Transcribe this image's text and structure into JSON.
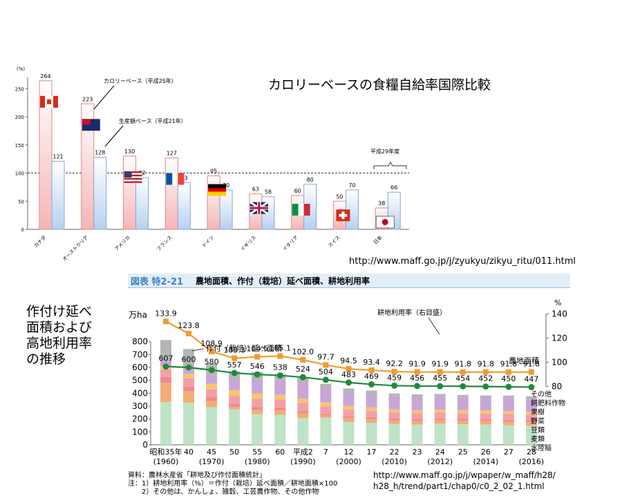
{
  "page_title": "カロリーベースの食糧自給率国際比較",
  "url_top": "http://www.maff.go.jp/j/zyukyu/zikyu_ritu/011.html",
  "side_title": "作付け延べ\n面積および\n高地利用率\nの推移",
  "url_bottom": "http://www.maff.go.jp/j/wpaper/w_maff/h28/\nh28_h/trend/part1/chap0/c0_2_02_1.html",
  "figure_header": {
    "badge": "図表 特2-21",
    "title": "農地面積、作付（栽培）延べ面積、耕地利用率"
  },
  "notes": "資料：農林水産省「耕地及び作付面積統計」\n 注：1）耕地利用率（%）＝作付（栽培）延べ面積／耕地面積×100\n　　2）その他は、かんしょ、雑穀、工芸農作物、その他作物",
  "chart_data": [
    {
      "type": "bar",
      "y_unit": "(%)",
      "ylim": [
        0,
        270
      ],
      "yticks": [
        0,
        50,
        100,
        150,
        200,
        250
      ],
      "reference_line": 100,
      "categories": [
        "カナダ",
        "オーストラリア",
        "アメリカ",
        "フランス",
        "ドイツ",
        "イギリス",
        "イタリア",
        "スイス",
        "日本"
      ],
      "flags": [
        "canada-flag-icon",
        "australia-flag-icon",
        "usa-flag-icon",
        "france-flag-icon",
        "germany-flag-icon",
        "uk-flag-icon",
        "italy-flag-icon",
        "switzerland-flag-icon",
        "japan-flag-icon"
      ],
      "series": [
        {
          "name": "カロリーベース（平成25年）",
          "values": [
            264,
            223,
            130,
            127,
            95,
            63,
            60,
            50,
            38
          ],
          "color": "#f5b5b5"
        },
        {
          "name": "生産額ベース（平成21年）",
          "values": [
            121,
            128,
            92,
            83,
            70,
            58,
            80,
            70,
            66
          ],
          "color": "#b8d0f0"
        }
      ],
      "annotations": [
        "カロリーベース（平成25年）",
        "生産額ベース（平成21年）",
        "平成29年度"
      ]
    },
    {
      "type": "bar",
      "stacked": true,
      "y_unit": "万ha",
      "y2_unit": "%",
      "ylim": [
        0,
        900
      ],
      "yticks": [
        0,
        100,
        200,
        300,
        400,
        500,
        600,
        700,
        800
      ],
      "y2lim": [
        75,
        145
      ],
      "y2ticks": [
        80,
        100,
        120,
        140
      ],
      "categories": [
        "昭和35年",
        "40",
        "45",
        "50",
        "55",
        "60",
        "平成2",
        "7",
        "12",
        "17",
        "22",
        "23",
        "24",
        "25",
        "26",
        "27",
        "28"
      ],
      "categories_sub": [
        "(1960)",
        "",
        "(1970)",
        "",
        "(1980)",
        "",
        "(1990)",
        "",
        "(2000)",
        "",
        "(2010)",
        "",
        "(2012)",
        "",
        "(2014)",
        "",
        "(2016)"
      ],
      "stack_series": [
        {
          "name": "水陸稲",
          "color": "#bfe3c6",
          "values": [
            331,
            326,
            292,
            276,
            238,
            232,
            207,
            211,
            177,
            171,
            163,
            158,
            164,
            160,
            157,
            151,
            148
          ]
        },
        {
          "name": "麦類",
          "color": "#f1ad76",
          "values": [
            150,
            90,
            47,
            17,
            32,
            35,
            37,
            17,
            30,
            29,
            27,
            27,
            27,
            27,
            27,
            28,
            28
          ]
        },
        {
          "name": "豆類",
          "color": "#f08a8a",
          "values": [
            44,
            34,
            28,
            25,
            24,
            22,
            18,
            12,
            13,
            15,
            15,
            15,
            14,
            14,
            14,
            15,
            15
          ]
        },
        {
          "name": "野菜",
          "color": "#f2a0a8",
          "values": [
            60,
            65,
            63,
            62,
            64,
            62,
            62,
            58,
            53,
            48,
            45,
            44,
            44,
            44,
            44,
            44,
            43
          ]
        },
        {
          "name": "果樹",
          "color": "#f7c46f",
          "values": [
            25,
            35,
            43,
            42,
            41,
            37,
            35,
            32,
            29,
            28,
            25,
            25,
            24,
            24,
            24,
            24,
            23
          ]
        },
        {
          "name": "飼肥料作物",
          "color": "#c7a6d8",
          "values": [
            40,
            57,
            67,
            87,
            107,
            116,
            123,
            107,
            102,
            100,
            101,
            100,
            101,
            99,
            98,
            99,
            98
          ]
        },
        {
          "name": "その他",
          "color": "#b5b5b5",
          "values": [
            163,
            136,
            91,
            61,
            60,
            45,
            42,
            36,
            33,
            30,
            22,
            22,
            20,
            19,
            19,
            21,
            21
          ]
        }
      ],
      "totals_top": [
        813,
        743,
        631,
        570,
        566,
        549,
        524,
        473,
        437,
        421,
        398,
        391,
        394,
        387,
        383,
        382,
        376
      ],
      "line_series": [
        {
          "name": "農地面積",
          "axis": "left",
          "color": "#1f8a3a",
          "values": [
            607,
            600,
            580,
            557,
            546,
            538,
            524,
            504,
            483,
            469,
            459,
            456,
            455,
            454,
            452,
            450,
            447
          ]
        },
        {
          "name": "耕地利用率（右目盛）",
          "axis": "right",
          "color": "#f29a2e",
          "values": [
            133.9,
            123.8,
            108.9,
            103.3,
            104.5,
            105.1,
            102.0,
            97.7,
            94.5,
            93.4,
            92.2,
            91.9,
            91.9,
            91.8,
            91.8,
            91.8,
            91.8
          ]
        }
      ],
      "annotations": [
        "作付（栽培）延べ面積",
        "耕地利用率（右目盛）",
        "農地面積"
      ]
    }
  ]
}
